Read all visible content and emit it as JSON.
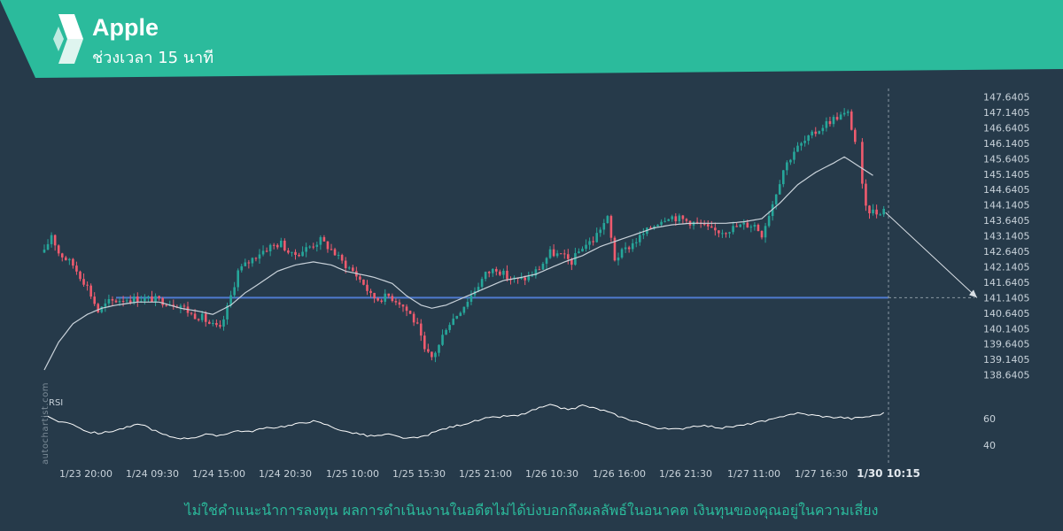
{
  "header": {
    "title": "Apple",
    "subtitle": "ช่วงเวลา 15 นาที",
    "logo": "autochartist-chevron-logo",
    "banner_color": "#2BBB9C"
  },
  "disclaimer": "ไม่ใช่คำแนะนำการลงทุน ผลการดำเนินงานในอดีตไม่ได้บ่งบอกถึงผลลัพธ์ในอนาคต เงินทุนของคุณอยู่ในความเสี่ยง",
  "watermark": "autochartist.com",
  "chart_data": {
    "type": "candlestick",
    "ylim": [
      138.4,
      147.8
    ],
    "y_ticks": [
      "147.6405",
      "147.1405",
      "146.6405",
      "146.1405",
      "145.6405",
      "145.1405",
      "144.6405",
      "144.1405",
      "143.6405",
      "143.1405",
      "142.6405",
      "142.1405",
      "141.6405",
      "141.1405",
      "140.6405",
      "140.1405",
      "139.6405",
      "139.1405",
      "138.6405"
    ],
    "x_ticks": [
      "1/23 20:00",
      "1/24 09:30",
      "1/24 15:00",
      "1/24 20:30",
      "1/25 10:00",
      "1/25 15:30",
      "1/25 21:00",
      "1/26 10:30",
      "1/26 16:00",
      "1/26 21:30",
      "1/27 11:00",
      "1/27 16:30"
    ],
    "x_current": "1/30 10:15",
    "price_anchors": [
      [
        0,
        142.6
      ],
      [
        2,
        143.2
      ],
      [
        4,
        142.6
      ],
      [
        8,
        142.2
      ],
      [
        12,
        141.5
      ],
      [
        15,
        140.7
      ],
      [
        18,
        141.0
      ],
      [
        22,
        141.1
      ],
      [
        26,
        141.1
      ],
      [
        30,
        141.1
      ],
      [
        34,
        141.0
      ],
      [
        38,
        140.9
      ],
      [
        41,
        140.6
      ],
      [
        44,
        140.5
      ],
      [
        46,
        140.3
      ],
      [
        49,
        140.1
      ],
      [
        51,
        140.8
      ],
      [
        54,
        142.0
      ],
      [
        57,
        142.3
      ],
      [
        60,
        142.6
      ],
      [
        63,
        142.8
      ],
      [
        66,
        142.9
      ],
      [
        69,
        142.5
      ],
      [
        71,
        142.6
      ],
      [
        74,
        142.8
      ],
      [
        77,
        143.0
      ],
      [
        80,
        142.7
      ],
      [
        83,
        142.3
      ],
      [
        86,
        142.0
      ],
      [
        89,
        141.6
      ],
      [
        91,
        141.2
      ],
      [
        93,
        141.1
      ],
      [
        96,
        141.2
      ],
      [
        99,
        141.0
      ],
      [
        102,
        140.6
      ],
      [
        104,
        140.2
      ],
      [
        106,
        139.4
      ],
      [
        108,
        139.2
      ],
      [
        110,
        139.6
      ],
      [
        112,
        140.2
      ],
      [
        115,
        140.6
      ],
      [
        117,
        140.9
      ],
      [
        120,
        141.4
      ],
      [
        123,
        141.9
      ],
      [
        126,
        142.1
      ],
      [
        129,
        141.8
      ],
      [
        132,
        141.7
      ],
      [
        135,
        141.8
      ],
      [
        138,
        142.1
      ],
      [
        141,
        142.6
      ],
      [
        144,
        142.5
      ],
      [
        147,
        142.3
      ],
      [
        150,
        142.8
      ],
      [
        153,
        143.0
      ],
      [
        155,
        143.4
      ],
      [
        157,
        143.7
      ],
      [
        159,
        142.4
      ],
      [
        162,
        142.7
      ],
      [
        165,
        143.0
      ],
      [
        168,
        143.3
      ],
      [
        171,
        143.6
      ],
      [
        174,
        143.8
      ],
      [
        177,
        143.7
      ],
      [
        180,
        143.6
      ],
      [
        183,
        143.5
      ],
      [
        186,
        143.3
      ],
      [
        189,
        143.3
      ],
      [
        192,
        143.4
      ],
      [
        195,
        143.5
      ],
      [
        198,
        143.5
      ],
      [
        200,
        143.2
      ],
      [
        203,
        144.2
      ],
      [
        206,
        145.3
      ],
      [
        209,
        145.9
      ],
      [
        212,
        146.2
      ],
      [
        215,
        146.5
      ],
      [
        218,
        146.8
      ],
      [
        221,
        147.0
      ],
      [
        224,
        147.1
      ],
      [
        226,
        146.2
      ],
      [
        229,
        144.0
      ],
      [
        232,
        143.9
      ],
      [
        234,
        144.0
      ]
    ],
    "rsi_anchors": [
      [
        0,
        62
      ],
      [
        4,
        58
      ],
      [
        8,
        56
      ],
      [
        12,
        50
      ],
      [
        15,
        49
      ],
      [
        18,
        50
      ],
      [
        21,
        52
      ],
      [
        24,
        54
      ],
      [
        27,
        56
      ],
      [
        30,
        52
      ],
      [
        33,
        48
      ],
      [
        36,
        46
      ],
      [
        39,
        45
      ],
      [
        42,
        46
      ],
      [
        45,
        48
      ],
      [
        48,
        47
      ],
      [
        51,
        49
      ],
      [
        54,
        51
      ],
      [
        57,
        50
      ],
      [
        60,
        52
      ],
      [
        63,
        53
      ],
      [
        66,
        54
      ],
      [
        69,
        55
      ],
      [
        72,
        57
      ],
      [
        75,
        58
      ],
      [
        78,
        56
      ],
      [
        81,
        53
      ],
      [
        84,
        50
      ],
      [
        87,
        49
      ],
      [
        90,
        47
      ],
      [
        93,
        47
      ],
      [
        96,
        48
      ],
      [
        99,
        46
      ],
      [
        102,
        45
      ],
      [
        105,
        46
      ],
      [
        108,
        49
      ],
      [
        111,
        52
      ],
      [
        114,
        54
      ],
      [
        117,
        56
      ],
      [
        120,
        58
      ],
      [
        123,
        60
      ],
      [
        126,
        61
      ],
      [
        129,
        62
      ],
      [
        132,
        62
      ],
      [
        135,
        65
      ],
      [
        138,
        68
      ],
      [
        141,
        70
      ],
      [
        144,
        68
      ],
      [
        147,
        67
      ],
      [
        150,
        70
      ],
      [
        153,
        68
      ],
      [
        156,
        66
      ],
      [
        159,
        63
      ],
      [
        162,
        60
      ],
      [
        165,
        58
      ],
      [
        168,
        55
      ],
      [
        171,
        53
      ],
      [
        174,
        52
      ],
      [
        177,
        52
      ],
      [
        180,
        54
      ],
      [
        183,
        55
      ],
      [
        186,
        54
      ],
      [
        189,
        53
      ],
      [
        192,
        54
      ],
      [
        195,
        55
      ],
      [
        198,
        57
      ],
      [
        201,
        58
      ],
      [
        204,
        60
      ],
      [
        207,
        63
      ],
      [
        210,
        64
      ],
      [
        213,
        63
      ],
      [
        216,
        62
      ],
      [
        219,
        61
      ],
      [
        222,
        61
      ],
      [
        225,
        60
      ],
      [
        228,
        61
      ],
      [
        231,
        62
      ],
      [
        234,
        64
      ]
    ],
    "ma_anchors": [
      [
        0,
        138.8
      ],
      [
        4,
        139.7
      ],
      [
        8,
        140.3
      ],
      [
        12,
        140.6
      ],
      [
        16,
        140.8
      ],
      [
        20,
        140.9
      ],
      [
        26,
        141.0
      ],
      [
        32,
        141.0
      ],
      [
        38,
        140.8
      ],
      [
        43,
        140.7
      ],
      [
        47,
        140.6
      ],
      [
        52,
        140.9
      ],
      [
        56,
        141.3
      ],
      [
        60,
        141.6
      ],
      [
        65,
        142.0
      ],
      [
        70,
        142.2
      ],
      [
        75,
        142.3
      ],
      [
        80,
        142.2
      ],
      [
        84,
        142.0
      ],
      [
        88,
        141.9
      ],
      [
        92,
        141.8
      ],
      [
        97,
        141.6
      ],
      [
        101,
        141.2
      ],
      [
        105,
        140.9
      ],
      [
        108,
        140.8
      ],
      [
        112,
        140.9
      ],
      [
        116,
        141.1
      ],
      [
        120,
        141.3
      ],
      [
        124,
        141.5
      ],
      [
        128,
        141.7
      ],
      [
        133,
        141.8
      ],
      [
        137,
        141.9
      ],
      [
        141,
        142.1
      ],
      [
        145,
        142.3
      ],
      [
        150,
        142.5
      ],
      [
        155,
        142.8
      ],
      [
        160,
        143.0
      ],
      [
        165,
        143.2
      ],
      [
        170,
        143.4
      ],
      [
        175,
        143.5
      ],
      [
        180,
        143.55
      ],
      [
        185,
        143.55
      ],
      [
        190,
        143.55
      ],
      [
        195,
        143.6
      ],
      [
        200,
        143.7
      ],
      [
        205,
        144.2
      ],
      [
        210,
        144.8
      ],
      [
        215,
        145.2
      ],
      [
        220,
        145.5
      ],
      [
        223,
        145.7
      ],
      [
        227,
        145.4
      ],
      [
        231,
        145.1
      ]
    ],
    "support_level": 141.1405,
    "forecast": {
      "from": 143.9,
      "to": 141.1405
    },
    "colors": {
      "up": "#26A69A",
      "down": "#EF5B6E",
      "ma": "#C9D2DA",
      "support": "#4F7BD0",
      "rsi": "#FFFFFF"
    },
    "rsi": {
      "label": "RSI",
      "ticks": [
        "60",
        "40"
      ]
    }
  }
}
